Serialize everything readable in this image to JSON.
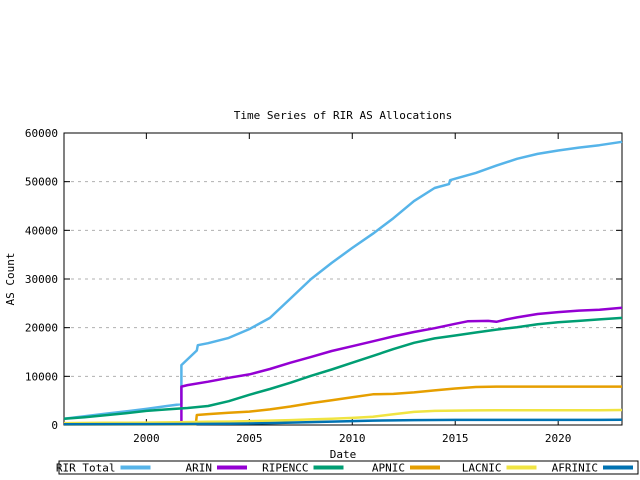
{
  "window": {
    "background": "#ffffff"
  },
  "chart_data": {
    "type": "line",
    "title": "Time Series of RIR AS Allocations",
    "xlabel": "Date",
    "ylabel": "AS Count",
    "xlim": [
      1996,
      2023.1
    ],
    "ylim": [
      0,
      60000
    ],
    "xticks": [
      2000,
      2005,
      2010,
      2015,
      2020
    ],
    "yticks": [
      0,
      10000,
      20000,
      30000,
      40000,
      50000,
      60000
    ],
    "grid": "horizontal-dashed-at-yticks",
    "grid_color": "#b0b0b0",
    "axis_color": "#000000",
    "legend_position": "bottom-boxed-horizontal",
    "series": [
      {
        "name": "RIR Total",
        "color": "#56b4e9",
        "points": [
          [
            1996,
            1300
          ],
          [
            1997,
            1800
          ],
          [
            1998,
            2300
          ],
          [
            1999,
            2800
          ],
          [
            2000,
            3300
          ],
          [
            2001,
            3900
          ],
          [
            2001.7,
            4300
          ],
          [
            2001.7,
            12300
          ],
          [
            2002.45,
            15300
          ],
          [
            2002.5,
            16400
          ],
          [
            2003,
            16800
          ],
          [
            2004,
            17900
          ],
          [
            2005,
            19700
          ],
          [
            2006,
            22000
          ],
          [
            2007,
            26000
          ],
          [
            2008,
            30000
          ],
          [
            2009,
            33300
          ],
          [
            2010,
            36400
          ],
          [
            2011,
            39300
          ],
          [
            2012,
            42500
          ],
          [
            2013,
            46000
          ],
          [
            2014,
            48700
          ],
          [
            2014.7,
            49500
          ],
          [
            2014.75,
            50300
          ],
          [
            2015,
            50600
          ],
          [
            2016,
            51800
          ],
          [
            2017,
            53300
          ],
          [
            2018,
            54700
          ],
          [
            2019,
            55700
          ],
          [
            2020,
            56400
          ],
          [
            2021,
            57000
          ],
          [
            2022,
            57500
          ],
          [
            2023.1,
            58200
          ]
        ]
      },
      {
        "name": "ARIN",
        "color": "#9400d3",
        "points": [
          [
            2001.7,
            0
          ],
          [
            2001.7,
            7900
          ],
          [
            2002,
            8200
          ],
          [
            2003,
            8900
          ],
          [
            2004,
            9700
          ],
          [
            2005,
            10400
          ],
          [
            2006,
            11500
          ],
          [
            2007,
            12800
          ],
          [
            2008,
            14000
          ],
          [
            2009,
            15200
          ],
          [
            2010,
            16200
          ],
          [
            2011,
            17200
          ],
          [
            2012,
            18200
          ],
          [
            2013,
            19100
          ],
          [
            2014,
            19900
          ],
          [
            2015,
            20800
          ],
          [
            2015.6,
            21300
          ],
          [
            2016.6,
            21400
          ],
          [
            2017,
            21200
          ],
          [
            2017.5,
            21700
          ],
          [
            2018,
            22100
          ],
          [
            2019,
            22800
          ],
          [
            2020,
            23200
          ],
          [
            2021,
            23500
          ],
          [
            2022,
            23700
          ],
          [
            2023.1,
            24100
          ]
        ]
      },
      {
        "name": "RIPENCC",
        "color": "#009e73",
        "points": [
          [
            1996,
            1300
          ],
          [
            1997,
            1600
          ],
          [
            1998,
            2000
          ],
          [
            1999,
            2400
          ],
          [
            2000,
            2900
          ],
          [
            2001,
            3200
          ],
          [
            2002,
            3500
          ],
          [
            2003,
            3900
          ],
          [
            2004,
            4900
          ],
          [
            2005,
            6200
          ],
          [
            2006,
            7400
          ],
          [
            2007,
            8700
          ],
          [
            2008,
            10100
          ],
          [
            2009,
            11400
          ],
          [
            2010,
            12800
          ],
          [
            2011,
            14200
          ],
          [
            2012,
            15600
          ],
          [
            2013,
            16900
          ],
          [
            2014,
            17800
          ],
          [
            2015,
            18400
          ],
          [
            2016,
            19000
          ],
          [
            2017,
            19600
          ],
          [
            2018,
            20100
          ],
          [
            2019,
            20700
          ],
          [
            2020,
            21100
          ],
          [
            2021,
            21400
          ],
          [
            2022,
            21700
          ],
          [
            2023.1,
            22000
          ]
        ]
      },
      {
        "name": "APNIC",
        "color": "#e69f00",
        "points": [
          [
            1996,
            100
          ],
          [
            2002.4,
            150
          ],
          [
            2002.45,
            2050
          ],
          [
            2003,
            2250
          ],
          [
            2004,
            2500
          ],
          [
            2005,
            2750
          ],
          [
            2006,
            3200
          ],
          [
            2007,
            3800
          ],
          [
            2008,
            4500
          ],
          [
            2009,
            5100
          ],
          [
            2010,
            5700
          ],
          [
            2011,
            6300
          ],
          [
            2012,
            6400
          ],
          [
            2013,
            6700
          ],
          [
            2014,
            7100
          ],
          [
            2015,
            7500
          ],
          [
            2016,
            7800
          ],
          [
            2017,
            7900
          ],
          [
            2018,
            7900
          ],
          [
            2019,
            7900
          ],
          [
            2020,
            7900
          ],
          [
            2021,
            7900
          ],
          [
            2022,
            7900
          ],
          [
            2023.1,
            7900
          ]
        ]
      },
      {
        "name": "LACNIC",
        "color": "#f0e442",
        "points": [
          [
            1996,
            400
          ],
          [
            1998,
            450
          ],
          [
            2000,
            500
          ],
          [
            2002,
            600
          ],
          [
            2003,
            650
          ],
          [
            2004,
            700
          ],
          [
            2005,
            800
          ],
          [
            2006,
            900
          ],
          [
            2007,
            1000
          ],
          [
            2008,
            1150
          ],
          [
            2009,
            1300
          ],
          [
            2010,
            1450
          ],
          [
            2011,
            1700
          ],
          [
            2012,
            2200
          ],
          [
            2013,
            2700
          ],
          [
            2014,
            2900
          ],
          [
            2015,
            2950
          ],
          [
            2016,
            3000
          ],
          [
            2017,
            3050
          ],
          [
            2018,
            3050
          ],
          [
            2019,
            3050
          ],
          [
            2020,
            3050
          ],
          [
            2021,
            3050
          ],
          [
            2022,
            3050
          ],
          [
            2023.1,
            3080
          ]
        ]
      },
      {
        "name": "AFRINIC",
        "color": "#0072b2",
        "points": [
          [
            1996,
            150
          ],
          [
            2000,
            180
          ],
          [
            2002,
            200
          ],
          [
            2004,
            250
          ],
          [
            2005,
            300
          ],
          [
            2006,
            400
          ],
          [
            2007,
            500
          ],
          [
            2008,
            600
          ],
          [
            2009,
            700
          ],
          [
            2010,
            800
          ],
          [
            2011,
            900
          ],
          [
            2012,
            950
          ],
          [
            2013,
            1000
          ],
          [
            2014,
            1030
          ],
          [
            2015,
            1050
          ],
          [
            2016,
            1050
          ],
          [
            2017,
            1050
          ],
          [
            2018,
            1050
          ],
          [
            2019,
            1050
          ],
          [
            2020,
            1050
          ],
          [
            2021,
            1050
          ],
          [
            2022,
            1050
          ],
          [
            2023.1,
            1060
          ]
        ]
      }
    ]
  }
}
